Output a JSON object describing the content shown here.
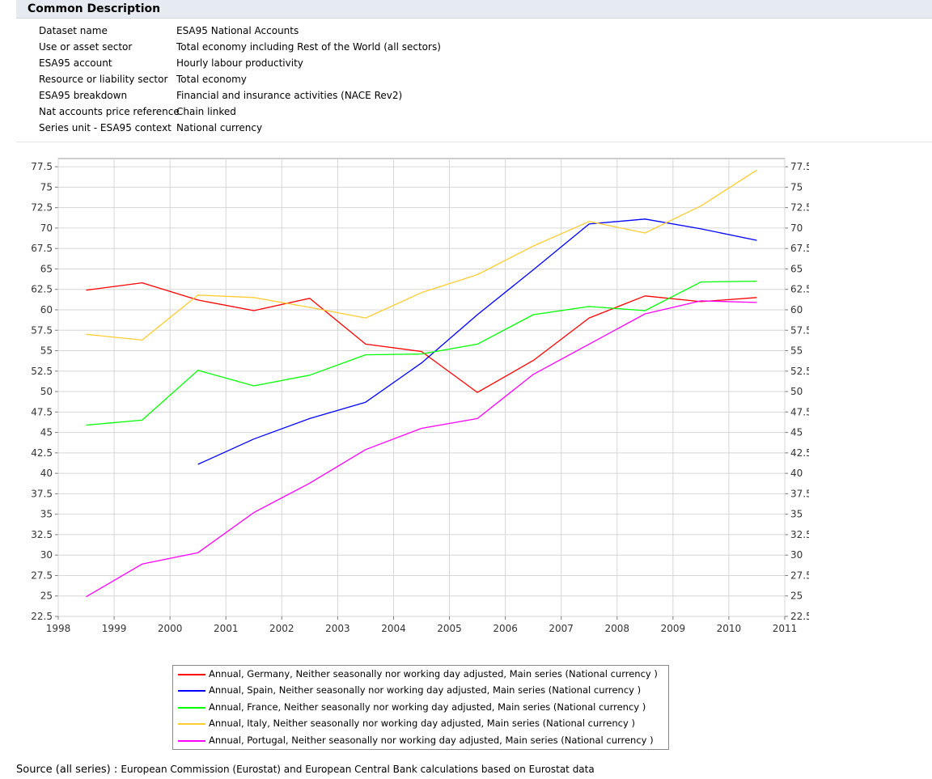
{
  "description": {
    "title": "Common Description",
    "rows": [
      {
        "label": "Dataset name",
        "value": "ESA95 National Accounts"
      },
      {
        "label": "Use or asset sector",
        "value": "Total economy including Rest of the World (all sectors)"
      },
      {
        "label": "ESA95 account",
        "value": "Hourly labour productivity"
      },
      {
        "label": "Resource or liability sector",
        "value": "Total economy"
      },
      {
        "label": "ESA95 breakdown",
        "value": "Financial and insurance activities (NACE Rev2)"
      },
      {
        "label": "Nat accounts price reference",
        "value": "Chain linked"
      },
      {
        "label": "Series unit - ESA95 context",
        "value": "National currency"
      }
    ]
  },
  "chart_data": {
    "type": "line",
    "title": "",
    "xlabel": "",
    "ylabel": "",
    "xlim": [
      1998,
      2011
    ],
    "ylim": [
      22.5,
      78.5
    ],
    "grid": true,
    "legend_position": "bottom",
    "x_ticks": [
      "1998",
      "1999",
      "2000",
      "2001",
      "2002",
      "2003",
      "2004",
      "2005",
      "2006",
      "2007",
      "2008",
      "2009",
      "2010",
      "2011"
    ],
    "y_ticks": [
      "22.5",
      "25",
      "27.5",
      "30",
      "32.5",
      "35",
      "37.5",
      "40",
      "42.5",
      "45",
      "47.5",
      "50",
      "52.5",
      "55",
      "57.5",
      "60",
      "62.5",
      "65",
      "67.5",
      "70",
      "72.5",
      "75",
      "77.5"
    ],
    "series": [
      {
        "name": "Annual, Germany, Neither seasonally nor working day adjusted, Main series (National currency )",
        "color": "#ff0000",
        "x": [
          1998.5,
          1999.5,
          2000.5,
          2001.5,
          2002.5,
          2003.5,
          2004.5,
          2005.5,
          2006.5,
          2007.5,
          2008.5,
          2009.5,
          2010.5
        ],
        "y": [
          62.4,
          63.3,
          61.2,
          59.9,
          61.4,
          55.8,
          54.9,
          49.9,
          53.8,
          59.0,
          61.7,
          61.0,
          61.5
        ]
      },
      {
        "name": "Annual, Spain, Neither seasonally nor working day adjusted, Main series (National currency )",
        "color": "#0000ff",
        "x": [
          2000.5,
          2001.5,
          2002.5,
          2003.5,
          2004.5,
          2005.5,
          2006.5,
          2007.5,
          2008.5,
          2009.5,
          2010.5
        ],
        "y": [
          41.1,
          44.2,
          46.7,
          48.7,
          53.5,
          59.4,
          64.9,
          70.5,
          71.1,
          69.9,
          68.5
        ]
      },
      {
        "name": "Annual, France, Neither seasonally nor working day adjusted, Main series (National currency )",
        "color": "#00ff00",
        "x": [
          1998.5,
          1999.5,
          2000.5,
          2001.5,
          2002.5,
          2003.5,
          2004.5,
          2005.5,
          2006.5,
          2007.5,
          2008.5,
          2009.5,
          2010.5
        ],
        "y": [
          45.9,
          46.5,
          52.6,
          50.7,
          52.0,
          54.5,
          54.6,
          55.8,
          59.4,
          60.4,
          59.9,
          63.4,
          63.5
        ]
      },
      {
        "name": "Annual, Italy, Neither seasonally nor working day adjusted, Main series (National currency )",
        "color": "#ffcc33",
        "x": [
          1998.5,
          1999.5,
          2000.5,
          2001.5,
          2002.5,
          2003.5,
          2004.5,
          2005.5,
          2006.5,
          2007.5,
          2008.5,
          2009.5,
          2010.5
        ],
        "y": [
          57.0,
          56.3,
          61.8,
          61.5,
          60.3,
          59.0,
          62.1,
          64.3,
          67.8,
          70.8,
          69.4,
          72.7,
          77.1
        ]
      },
      {
        "name": "Annual, Portugal, Neither seasonally nor working day adjusted, Main series (National currency )",
        "color": "#ff00ff",
        "x": [
          1998.5,
          1999.5,
          2000.5,
          2001.5,
          2002.5,
          2003.5,
          2004.5,
          2005.5,
          2006.5,
          2007.5,
          2008.5,
          2009.5,
          2010.5
        ],
        "y": [
          24.9,
          28.9,
          30.3,
          35.2,
          38.8,
          42.9,
          45.5,
          46.7,
          52.1,
          55.8,
          59.5,
          61.1,
          60.9
        ]
      }
    ]
  },
  "footer": {
    "source_label": "Source (all series) :",
    "source_text": "European Commission (Eurostat) and European Central Bank calculations based on Eurostat data"
  }
}
